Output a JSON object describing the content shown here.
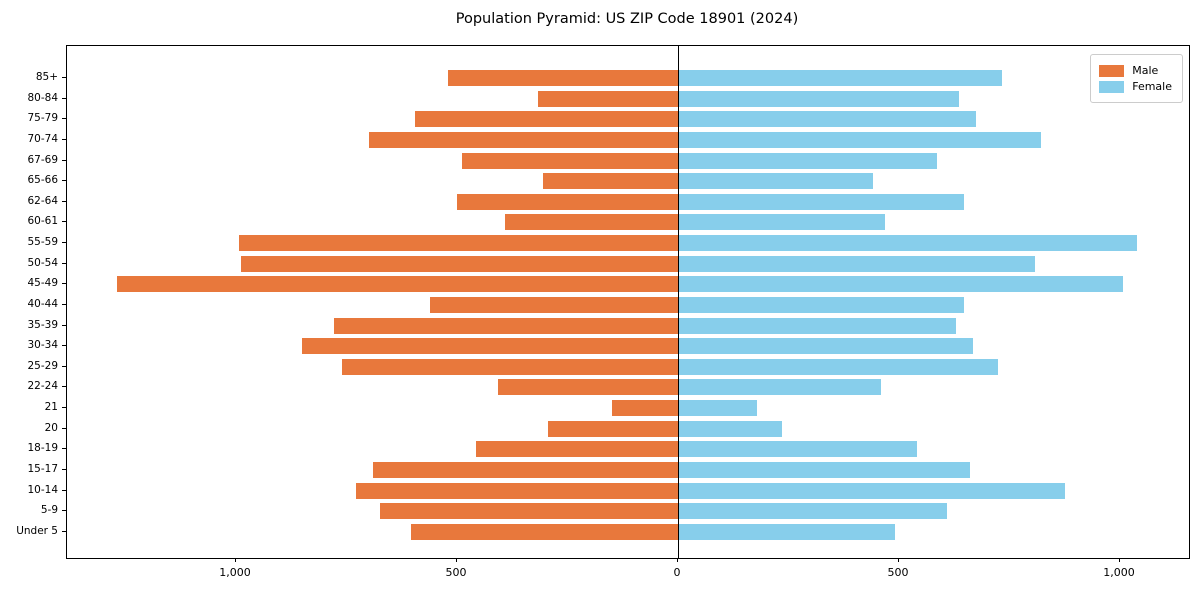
{
  "chart_data": {
    "type": "bar",
    "subtype": "population-pyramid",
    "title": "Population Pyramid: US ZIP Code 18901 (2024)",
    "orientation": "horizontal",
    "categories_top_to_bottom": [
      "85+",
      "80-84",
      "75-79",
      "70-74",
      "67-69",
      "65-66",
      "62-64",
      "60-61",
      "55-59",
      "50-54",
      "45-49",
      "40-44",
      "35-39",
      "30-34",
      "25-29",
      "22-24",
      "21",
      "20",
      "18-19",
      "15-17",
      "10-14",
      "5-9",
      "Under 5"
    ],
    "series": [
      {
        "name": "Male",
        "side": "left",
        "color": "#e8783c",
        "values": [
          520,
          317,
          595,
          700,
          488,
          306,
          501,
          391,
          992,
          988,
          1268,
          562,
          778,
          850,
          761,
          407,
          149,
          293,
          458,
          689,
          728,
          674,
          603
        ]
      },
      {
        "name": "Female",
        "side": "right",
        "color": "#87ceeb",
        "values": [
          730,
          633,
          672,
          818,
          584,
          438,
          645,
          466,
          1036,
          805,
          1005,
          645,
          627,
          665,
          722,
          457,
          177,
          232,
          539,
          659,
          873,
          606,
          489
        ]
      }
    ],
    "x_ticks": [
      {
        "value": -1000,
        "label": "1,000"
      },
      {
        "value": -500,
        "label": "500"
      },
      {
        "value": 0,
        "label": "0"
      },
      {
        "value": 500,
        "label": "500"
      },
      {
        "value": 1000,
        "label": "1,000"
      }
    ],
    "xlim": [
      -1382,
      1156
    ],
    "grid": false,
    "legend_position": "upper right",
    "zero_line_color": "#000000",
    "background_color": "#ffffff"
  },
  "legend": {
    "items": [
      {
        "label": "Male",
        "color": "#e8783c"
      },
      {
        "label": "Female",
        "color": "#87ceeb"
      }
    ]
  }
}
